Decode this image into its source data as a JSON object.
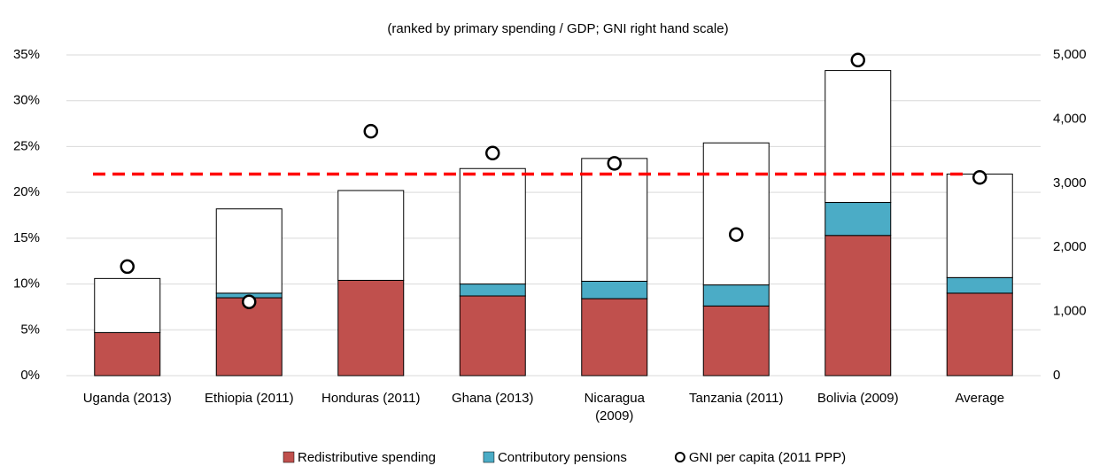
{
  "chart_data": {
    "type": "bar",
    "stacked": true,
    "subtitle": "(ranked by primary spending / GDP; GNI right hand scale)",
    "categories": [
      "Uganda (2013)",
      "Ethiopia (2011)",
      "Honduras (2011)",
      "Ghana (2013)",
      "Nicaragua\n(2009)",
      "Tanzania (2011)",
      "Bolivia (2009)",
      "Average"
    ],
    "series": [
      {
        "name": "Redistributive spending",
        "color": "#c0504d",
        "values": [
          4.7,
          8.5,
          10.4,
          8.7,
          8.4,
          7.6,
          15.3,
          9.0
        ]
      },
      {
        "name": "Contributory pensions",
        "color": "#4bacc6",
        "values": [
          0,
          0.5,
          0,
          1.3,
          1.9,
          2.3,
          3.6,
          1.7
        ]
      },
      {
        "color": "#ffffff",
        "values": [
          5.9,
          9.2,
          9.8,
          12.6,
          13.4,
          15.5,
          14.4,
          11.3
        ]
      },
      {
        "name": "GNI per capita (2011 PPP)",
        "type": "scatter",
        "axis": "y2",
        "color": "#000000",
        "values": [
          1700,
          1150,
          3810,
          3470,
          3310,
          2200,
          4920,
          3090
        ]
      }
    ],
    "reference_line": {
      "value": 22.0,
      "color": "#ff0000"
    },
    "ylim": [
      0,
      35
    ],
    "yticks": [
      {
        "value": 0,
        "label": "0%"
      },
      {
        "value": 5,
        "label": "5%"
      },
      {
        "value": 10,
        "label": "10%"
      },
      {
        "value": 15,
        "label": "15%"
      },
      {
        "value": 20,
        "label": "20%"
      },
      {
        "value": 25,
        "label": "25%"
      },
      {
        "value": 30,
        "label": "30%"
      },
      {
        "value": 35,
        "label": "35%"
      }
    ],
    "y2lim": [
      0,
      5000
    ],
    "y2ticks": [
      0,
      {
        "value": 1000,
        "label": "1,000"
      },
      {
        "value": 2000,
        "label": "2,000"
      },
      {
        "value": 3000,
        "label": "3,000"
      },
      {
        "value": 4000,
        "label": "4,000"
      },
      {
        "value": 5000,
        "label": "5,000"
      }
    ],
    "grid": true,
    "legend": "bottom"
  }
}
